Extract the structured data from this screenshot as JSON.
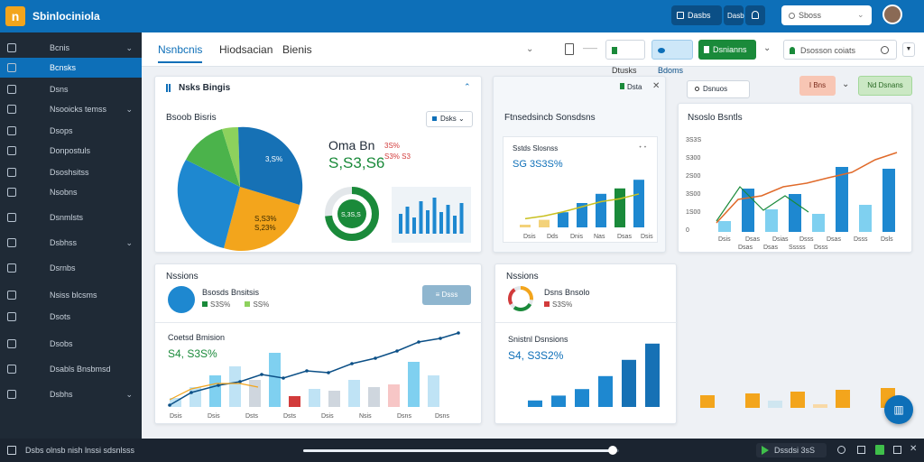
{
  "app": {
    "title": "Sbinlociniola",
    "logo": "n"
  },
  "topbar": {
    "btn1": "Dasbs",
    "btn2": "Dasb",
    "search_placeholder": "Sboss"
  },
  "sidebar": {
    "items": [
      {
        "label": "Bcnis",
        "icon": "grid-icon"
      },
      {
        "label": "Bcnsks",
        "icon": "dashboard-icon"
      },
      {
        "label": "Dsns",
        "icon": "calendar-icon"
      },
      {
        "label": "Nsooicks temss",
        "icon": "folder-icon"
      },
      {
        "label": "Dsops",
        "icon": "chart-icon"
      },
      {
        "label": "Donpostuls",
        "icon": "user-icon"
      },
      {
        "label": "Dsoshsitss",
        "icon": "pen-icon"
      },
      {
        "label": "Nsobns",
        "icon": "wrench-icon"
      },
      {
        "label": "Dsnmlsts",
        "icon": "clock-icon"
      },
      {
        "label": "Dsbhss",
        "icon": "gear-icon"
      },
      {
        "label": "Dsrnbs",
        "icon": "list-icon"
      },
      {
        "label": "Nsiss blcsms",
        "icon": "table-icon"
      },
      {
        "label": "Dsots",
        "icon": "alert-icon"
      },
      {
        "label": "Dsobs",
        "icon": "note-icon"
      },
      {
        "label": "Dsabls Bnsbmsd",
        "icon": "file-icon"
      },
      {
        "label": "Dsbhs",
        "icon": "settings-icon"
      }
    ]
  },
  "tabs": [
    "Nsnbcnis",
    "Hiodsacian",
    "Bienis"
  ],
  "toolbar": {
    "btn_blue": "Bdoms",
    "btn_green1": "Dtusks",
    "btn_green2": "Dsnianns",
    "filter_placeholder": "Dsosson coiats"
  },
  "card1": {
    "title": "Nsks Bingis",
    "subtitle": "Bsoob Bisris",
    "dropdown": "Dsks",
    "big_label": "Oma Bn",
    "big_value": "S,S3,S6",
    "small1": "3S%",
    "small2": "S3% S3",
    "pie_label1": "3,S%",
    "pie_label2": "S,23%",
    "pie_label3": "S,S3%",
    "donut_label": "S,3S,S"
  },
  "card2": {
    "header": "Dsta",
    "title": "Ftnsedsincb Sonsdsns",
    "inner_title": "Sstds Slosnss",
    "value": "SG 3S3S%",
    "x_labels": [
      "Dsis",
      "Dds",
      "Dnis",
      "Nas",
      "Dsas",
      "Dsis"
    ],
    "values": [
      5,
      14,
      28,
      45,
      62,
      72,
      88
    ]
  },
  "card3": {
    "badge1": "Dsnuos",
    "badge2": "I Bns",
    "badge3": "Nd Dsnans",
    "title": "Nsoslo Bsntls",
    "y_labels": [
      "3S3S",
      "S300",
      "2S00",
      "3S00",
      "1S00",
      "0"
    ],
    "x_labels": [
      "Dsis",
      "Dsas",
      "Dsias",
      "Dsss",
      "Dsas",
      "Dsss",
      "Dsls"
    ],
    "x_labels2": [
      "Dsas",
      "Dsas",
      "Sssss",
      "Dsss"
    ],
    "bars": [
      12,
      48,
      25,
      42,
      20,
      72,
      30,
      70
    ]
  },
  "card4": {
    "title": "Nssions",
    "item_title": "Bsosds Bnsitsis",
    "item_v1": "S3S%",
    "item_v2": "SS%",
    "btn": "Dsss",
    "sub_title": "Coetsd Bmision",
    "sub_value": "S4, S3S%",
    "x_labels": [
      "Dsis",
      "Dsis",
      "Dsts",
      "Dsts",
      "Dsis",
      "Nsis",
      "Dsns",
      "Dsns"
    ],
    "bars": [
      10,
      22,
      35,
      45,
      30,
      60,
      12,
      20,
      18,
      30,
      22,
      25,
      50,
      35
    ]
  },
  "card5": {
    "title": "Nssions",
    "item_title": "Dsns Bnsolo",
    "item_value": "S3S%",
    "sub_title": "Snistnl Dsnsions",
    "sub_value": "S4, S3S2%",
    "bars": [
      8,
      14,
      22,
      38,
      58,
      78
    ]
  },
  "bottom": {
    "left_label": "Dsbs olnsb nish lnssi sdsnlsss",
    "right_label": "Dssdsi 3sS",
    "progress": 0.98
  },
  "colors": {
    "accent": "#0d6fb8",
    "green": "#1a8a3a",
    "orange": "#f3a51c",
    "red": "#d23b3b",
    "light_blue": "#7fd0f0"
  }
}
